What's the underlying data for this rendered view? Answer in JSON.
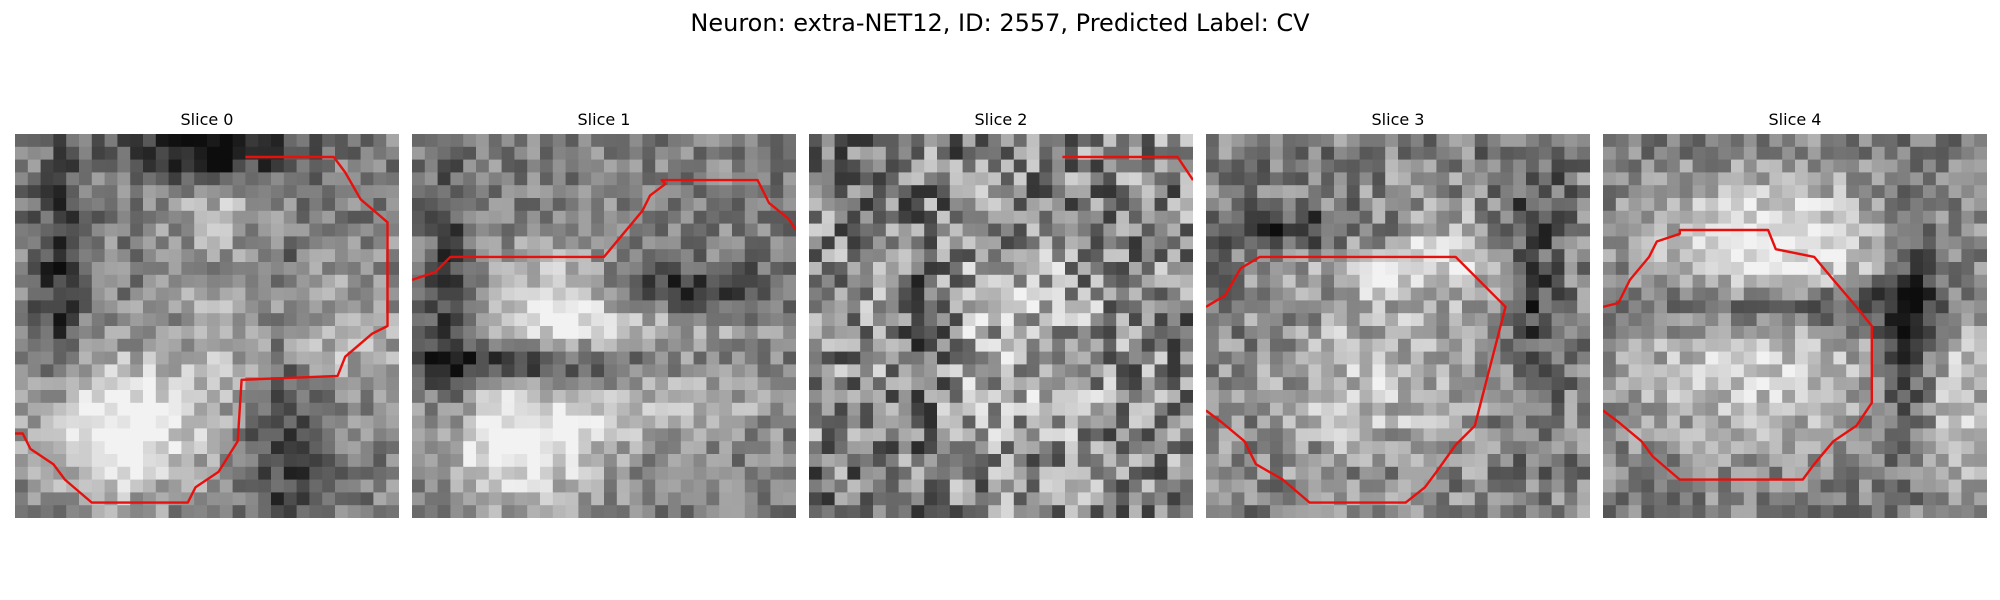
{
  "figure": {
    "title": "Neuron: extra-NET12, ID: 2557, Predicted Label: CV"
  },
  "panels": [
    {
      "label": "Slice 0",
      "seed": 11,
      "bright": [
        [
          0.27,
          0.77,
          0.22,
          0.17,
          0.55
        ],
        [
          0.73,
          0.52,
          0.28,
          0.18,
          0.3
        ],
        [
          0.55,
          0.2,
          0.15,
          0.1,
          0.22
        ]
      ],
      "dark": [
        [
          0.5,
          0.04,
          0.2,
          0.08,
          0.5
        ],
        [
          0.12,
          0.4,
          0.06,
          0.35,
          0.35
        ],
        [
          0.7,
          0.68,
          0.1,
          0.45,
          0.3
        ]
      ],
      "noise": 0.18,
      "contour": [
        [
          0.6,
          0.06
        ],
        [
          0.83,
          0.06
        ],
        [
          0.86,
          0.1
        ],
        [
          0.9,
          0.17
        ],
        [
          0.97,
          0.23
        ],
        [
          0.97,
          0.5
        ],
        [
          0.93,
          0.52
        ],
        [
          0.86,
          0.58
        ],
        [
          0.84,
          0.63
        ],
        [
          0.59,
          0.64
        ],
        [
          0.58,
          0.8
        ],
        [
          0.53,
          0.88
        ],
        [
          0.47,
          0.92
        ],
        [
          0.45,
          0.96
        ],
        [
          0.2,
          0.96
        ],
        [
          0.13,
          0.9
        ],
        [
          0.1,
          0.86
        ],
        [
          0.04,
          0.82
        ],
        [
          0.02,
          0.78
        ],
        [
          0.0,
          0.78
        ]
      ]
    },
    {
      "label": "Slice 1",
      "seed": 23,
      "bright": [
        [
          0.38,
          0.45,
          0.2,
          0.14,
          0.5
        ],
        [
          0.28,
          0.8,
          0.22,
          0.15,
          0.55
        ],
        [
          0.7,
          0.63,
          0.25,
          0.15,
          0.3
        ]
      ],
      "dark": [
        [
          0.38,
          0.6,
          0.45,
          0.06,
          0.45
        ],
        [
          0.1,
          0.45,
          0.06,
          0.35,
          0.3
        ],
        [
          0.65,
          0.4,
          0.3,
          0.06,
          0.35
        ]
      ],
      "noise": 0.17,
      "contour": [
        [
          0.0,
          0.38
        ],
        [
          0.06,
          0.36
        ],
        [
          0.1,
          0.32
        ],
        [
          0.5,
          0.32
        ],
        [
          0.55,
          0.26
        ],
        [
          0.6,
          0.2
        ],
        [
          0.62,
          0.16
        ],
        [
          0.66,
          0.13
        ],
        [
          0.65,
          0.12
        ],
        [
          0.9,
          0.12
        ],
        [
          0.93,
          0.18
        ],
        [
          0.98,
          0.22
        ],
        [
          1.0,
          0.25
        ]
      ]
    },
    {
      "label": "Slice 2",
      "seed": 37,
      "bright": [
        [
          0.5,
          0.55,
          0.3,
          0.3,
          0.2
        ]
      ],
      "dark": [
        [
          0.3,
          0.5,
          0.08,
          0.3,
          0.2
        ]
      ],
      "noise": 0.33,
      "contour": [
        [
          0.66,
          0.06
        ],
        [
          0.96,
          0.06
        ],
        [
          1.0,
          0.12
        ]
      ]
    },
    {
      "label": "Slice 3",
      "seed": 51,
      "bright": [
        [
          0.55,
          0.3,
          0.28,
          0.12,
          0.4
        ],
        [
          0.45,
          0.65,
          0.3,
          0.22,
          0.25
        ]
      ],
      "dark": [
        [
          0.3,
          0.25,
          0.35,
          0.06,
          0.35
        ],
        [
          0.85,
          0.35,
          0.08,
          0.35,
          0.3
        ]
      ],
      "noise": 0.22,
      "contour": [
        [
          0.0,
          0.45
        ],
        [
          0.05,
          0.42
        ],
        [
          0.09,
          0.35
        ],
        [
          0.14,
          0.32
        ],
        [
          0.65,
          0.32
        ],
        [
          0.72,
          0.39
        ],
        [
          0.78,
          0.45
        ],
        [
          0.7,
          0.76
        ],
        [
          0.65,
          0.81
        ],
        [
          0.6,
          0.88
        ],
        [
          0.57,
          0.92
        ],
        [
          0.52,
          0.96
        ],
        [
          0.27,
          0.96
        ],
        [
          0.2,
          0.9
        ],
        [
          0.13,
          0.86
        ],
        [
          0.1,
          0.8
        ],
        [
          0.04,
          0.75
        ],
        [
          0.0,
          0.72
        ]
      ]
    },
    {
      "label": "Slice 4",
      "seed": 67,
      "bright": [
        [
          0.45,
          0.28,
          0.3,
          0.16,
          0.45
        ],
        [
          0.4,
          0.62,
          0.35,
          0.2,
          0.3
        ],
        [
          0.92,
          0.7,
          0.08,
          0.25,
          0.3
        ]
      ],
      "dark": [
        [
          0.5,
          0.45,
          0.4,
          0.06,
          0.35
        ],
        [
          0.8,
          0.5,
          0.08,
          0.3,
          0.35
        ]
      ],
      "noise": 0.18,
      "contour": [
        [
          0.0,
          0.45
        ],
        [
          0.04,
          0.44
        ],
        [
          0.07,
          0.38
        ],
        [
          0.12,
          0.32
        ],
        [
          0.14,
          0.28
        ],
        [
          0.2,
          0.26
        ],
        [
          0.2,
          0.25
        ],
        [
          0.43,
          0.25
        ],
        [
          0.45,
          0.3
        ],
        [
          0.55,
          0.32
        ],
        [
          0.6,
          0.38
        ],
        [
          0.66,
          0.45
        ],
        [
          0.7,
          0.5
        ],
        [
          0.7,
          0.7
        ],
        [
          0.66,
          0.76
        ],
        [
          0.6,
          0.8
        ],
        [
          0.55,
          0.86
        ],
        [
          0.52,
          0.9
        ],
        [
          0.2,
          0.9
        ],
        [
          0.13,
          0.84
        ],
        [
          0.1,
          0.8
        ],
        [
          0.04,
          0.75
        ],
        [
          0.0,
          0.72
        ]
      ]
    }
  ]
}
